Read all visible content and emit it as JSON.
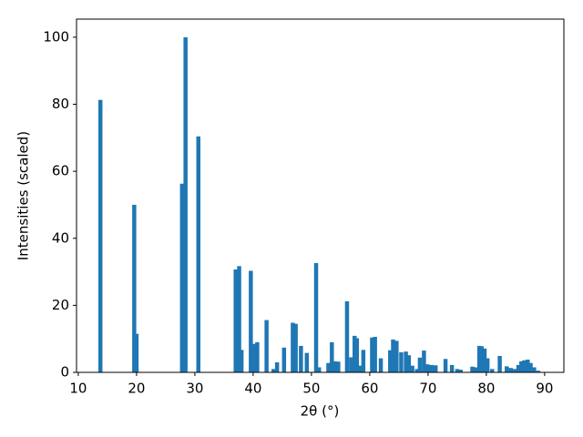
{
  "chart_data": {
    "type": "bar",
    "x_label": "2θ (°)",
    "y_label": "Intensities (scaled)",
    "color": "#1f77b4",
    "x": [
      13.8,
      19.6,
      20.0,
      27.8,
      28.4,
      30.6,
      37.0,
      37.6,
      38.0,
      39.6,
      40.2,
      40.7,
      42.3,
      43.5,
      44.1,
      45.3,
      46.8,
      47.3,
      48.2,
      49.2,
      50.8,
      51.3,
      52.9,
      53.5,
      54.0,
      54.6,
      56.1,
      56.8,
      57.4,
      57.8,
      58.3,
      58.9,
      60.4,
      60.9,
      61.9,
      63.5,
      64.0,
      64.6,
      65.4,
      66.2,
      66.7,
      67.3,
      68.1,
      68.6,
      69.3,
      69.9,
      70.6,
      71.3,
      73.0,
      74.1,
      75.0,
      75.6,
      77.6,
      78.2,
      78.8,
      79.2,
      79.7,
      80.2,
      81.0,
      82.3,
      83.5,
      84.2,
      84.9,
      85.5,
      86.0,
      86.5,
      87.1,
      87.6,
      88.2,
      88.9
    ],
    "values": [
      81.3,
      50,
      11.5,
      56.3,
      100,
      70.4,
      30.7,
      31.7,
      6.7,
      30.3,
      8.5,
      9,
      15.6,
      1,
      3,
      7.4,
      14.8,
      14.5,
      7.9,
      5.8,
      32.6,
      1.5,
      2.8,
      9,
      3.3,
      3.2,
      21.2,
      4.5,
      10.9,
      10.2,
      2,
      6.7,
      10.4,
      10.6,
      4.2,
      6.6,
      9.8,
      9.4,
      6,
      6.2,
      5.1,
      2,
      1,
      4.4,
      6.5,
      2.4,
      2.2,
      2.1,
      4,
      2.2,
      1,
      0.8,
      1.7,
      1.5,
      7.9,
      7.8,
      7.1,
      4.2,
      1,
      4.9,
      1.8,
      1.3,
      1,
      2.2,
      3.3,
      3.6,
      3.8,
      2.8,
      1.5,
      0.5
    ],
    "xlim": [
      9.7,
      93.3
    ],
    "xticks": [
      10,
      20,
      30,
      40,
      50,
      60,
      70,
      80,
      90
    ],
    "ylim": [
      0,
      105.4
    ],
    "yticks": [
      0,
      20,
      40,
      60,
      80,
      100
    ]
  }
}
